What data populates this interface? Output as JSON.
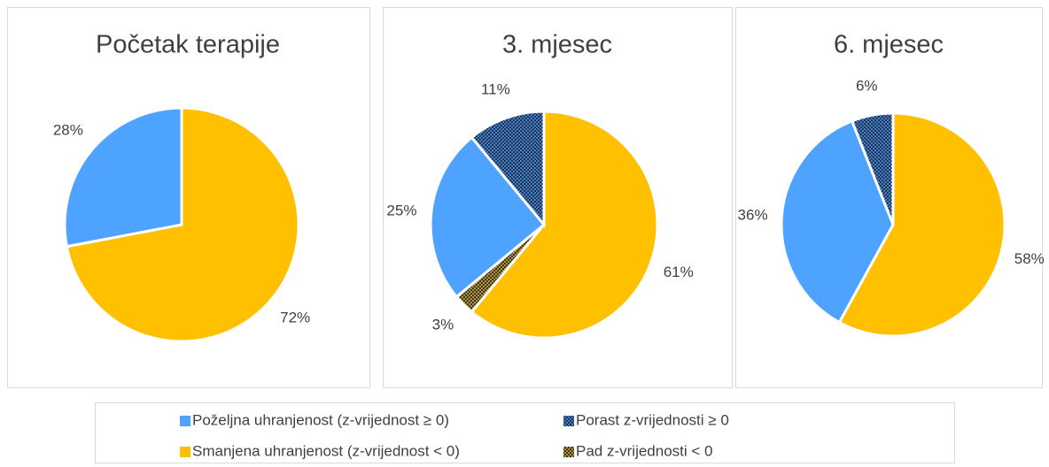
{
  "chart_data": [
    {
      "type": "pie",
      "title": "Početak terapije",
      "categories": [
        "Smanjena uhranjenost (z-vrijednost < 0)",
        "Poželjna uhranjenost (z-vrijednost ≥ 0)"
      ],
      "values": [
        72,
        28
      ],
      "value_labels": [
        "72%",
        "28%"
      ],
      "colors": [
        "#ffc000",
        "#4da3ff"
      ],
      "hatched": [
        false,
        false
      ]
    },
    {
      "type": "pie",
      "title": "3. mjesec",
      "categories": [
        "Smanjena uhranjenost (z-vrijednost < 0)",
        "Pad z-vrijednosti < 0",
        "Poželjna uhranjenost (z-vrijednost ≥ 0)",
        "Porast z-vrijednosti ≥ 0"
      ],
      "values": [
        61,
        3,
        25,
        11
      ],
      "value_labels": [
        "61%",
        "3%",
        "25%",
        "11%"
      ],
      "colors": [
        "#ffc000",
        "#ffc000",
        "#4da3ff",
        "#4da3ff"
      ],
      "hatched": [
        false,
        true,
        false,
        true
      ]
    },
    {
      "type": "pie",
      "title": "6. mjesec",
      "categories": [
        "Smanjena uhranjenost (z-vrijednost < 0)",
        "Poželjna uhranjenost (z-vrijednost ≥ 0)",
        "Porast z-vrijednosti ≥ 0"
      ],
      "values": [
        58,
        36,
        6
      ],
      "value_labels": [
        "58%",
        "36%",
        "6%"
      ],
      "colors": [
        "#ffc000",
        "#4da3ff",
        "#4da3ff"
      ],
      "hatched": [
        false,
        false,
        true
      ]
    }
  ]
}
